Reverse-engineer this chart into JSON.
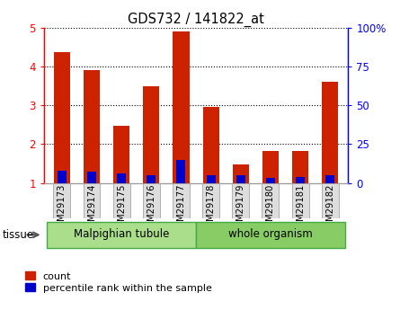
{
  "title": "GDS732 / 141822_at",
  "samples": [
    "GSM29173",
    "GSM29174",
    "GSM29175",
    "GSM29176",
    "GSM29177",
    "GSM29178",
    "GSM29179",
    "GSM29180",
    "GSM29181",
    "GSM29182"
  ],
  "count_values": [
    4.38,
    3.92,
    2.48,
    3.5,
    4.92,
    2.97,
    1.48,
    1.82,
    1.82,
    3.6
  ],
  "percentile_values": [
    8,
    7,
    6,
    5,
    15,
    5,
    5,
    3,
    4,
    5
  ],
  "bar_color": "#cc2200",
  "percentile_color": "#0000cc",
  "ylim_left": [
    1,
    5
  ],
  "ylim_right": [
    0,
    100
  ],
  "yticks_left": [
    1,
    2,
    3,
    4,
    5
  ],
  "yticks_right": [
    0,
    25,
    50,
    75,
    100
  ],
  "ytick_labels_left": [
    "1",
    "2",
    "3",
    "4",
    "5"
  ],
  "ytick_labels_right": [
    "0",
    "25",
    "50",
    "75",
    "100%"
  ],
  "groups": [
    {
      "label": "Malpighian tubule",
      "indices": [
        0,
        1,
        2,
        3,
        4
      ],
      "color": "#aade8a"
    },
    {
      "label": "whole organism",
      "indices": [
        5,
        6,
        7,
        8,
        9
      ],
      "color": "#88cc66"
    }
  ],
  "tissue_label": "tissue",
  "legend_count_label": "count",
  "legend_percentile_label": "percentile rank within the sample",
  "plot_bg": "#ffffff",
  "bar_width": 0.55
}
